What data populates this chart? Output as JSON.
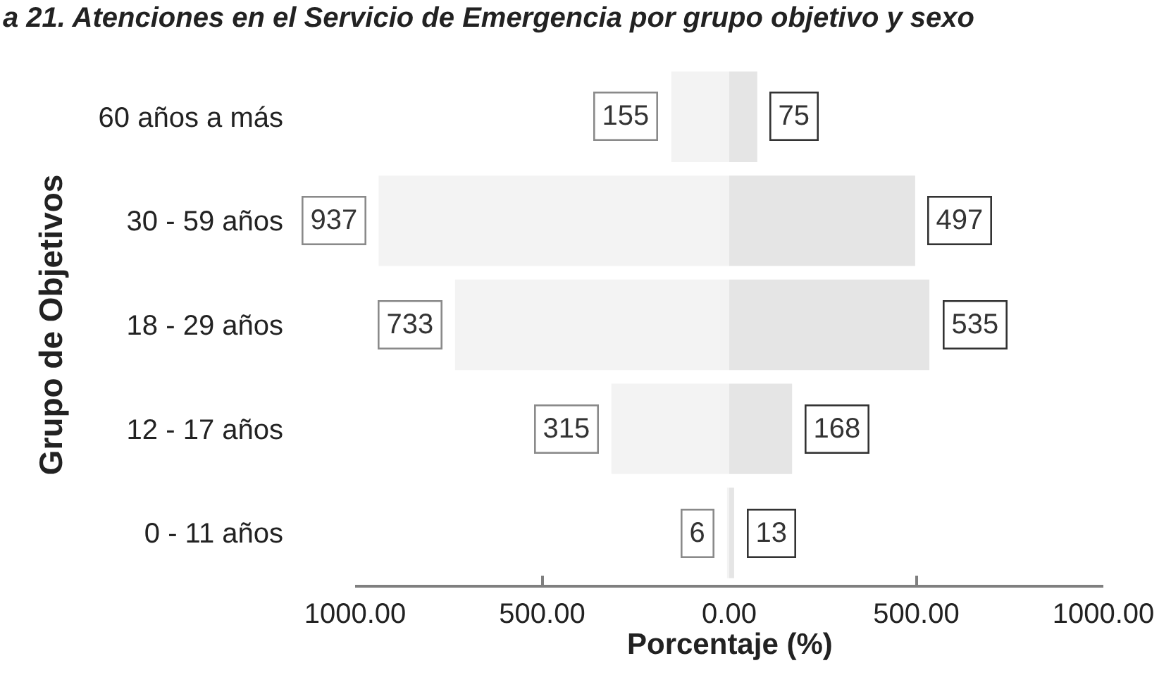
{
  "chart_data": [
    {
      "type": "bar",
      "orientation": "horizontal",
      "title": "a 21. Atenciones en el Servicio de Emergencia por grupo objetivo y sexo",
      "xlabel": "Porcentaje (%)",
      "ylabel": "Grupo de Objetivos",
      "categories": [
        "60 años a más",
        "30 - 59 años",
        "18 - 29 años",
        "12 - 17 años",
        "0 - 11 años"
      ],
      "series": [
        {
          "color": "#f3f3f3",
          "values": [
            155,
            937,
            733,
            315,
            6
          ]
        }
      ],
      "data_labels": true,
      "xlim": [
        1000,
        0
      ],
      "xticks": [
        {
          "value": 1000,
          "label": "1000.00"
        },
        {
          "value": 500,
          "label": "500.00"
        },
        {
          "value": 0,
          "label": "0.00"
        }
      ]
    },
    {
      "type": "bar",
      "orientation": "horizontal",
      "tick_labels": "x",
      "categories": [
        "60 años a más",
        "30 - 59 años",
        "18 - 29 años",
        "12 - 17 años",
        "0 - 11 años"
      ],
      "series": [
        {
          "color": "#e5e5e5",
          "values": [
            75,
            497,
            535,
            168,
            13
          ]
        }
      ],
      "data_labels": true,
      "xlim": [
        0,
        1000
      ],
      "xticks": [
        {
          "value": 500,
          "label": "500.00"
        },
        {
          "value": 1000,
          "label": "1000.00"
        }
      ]
    }
  ]
}
